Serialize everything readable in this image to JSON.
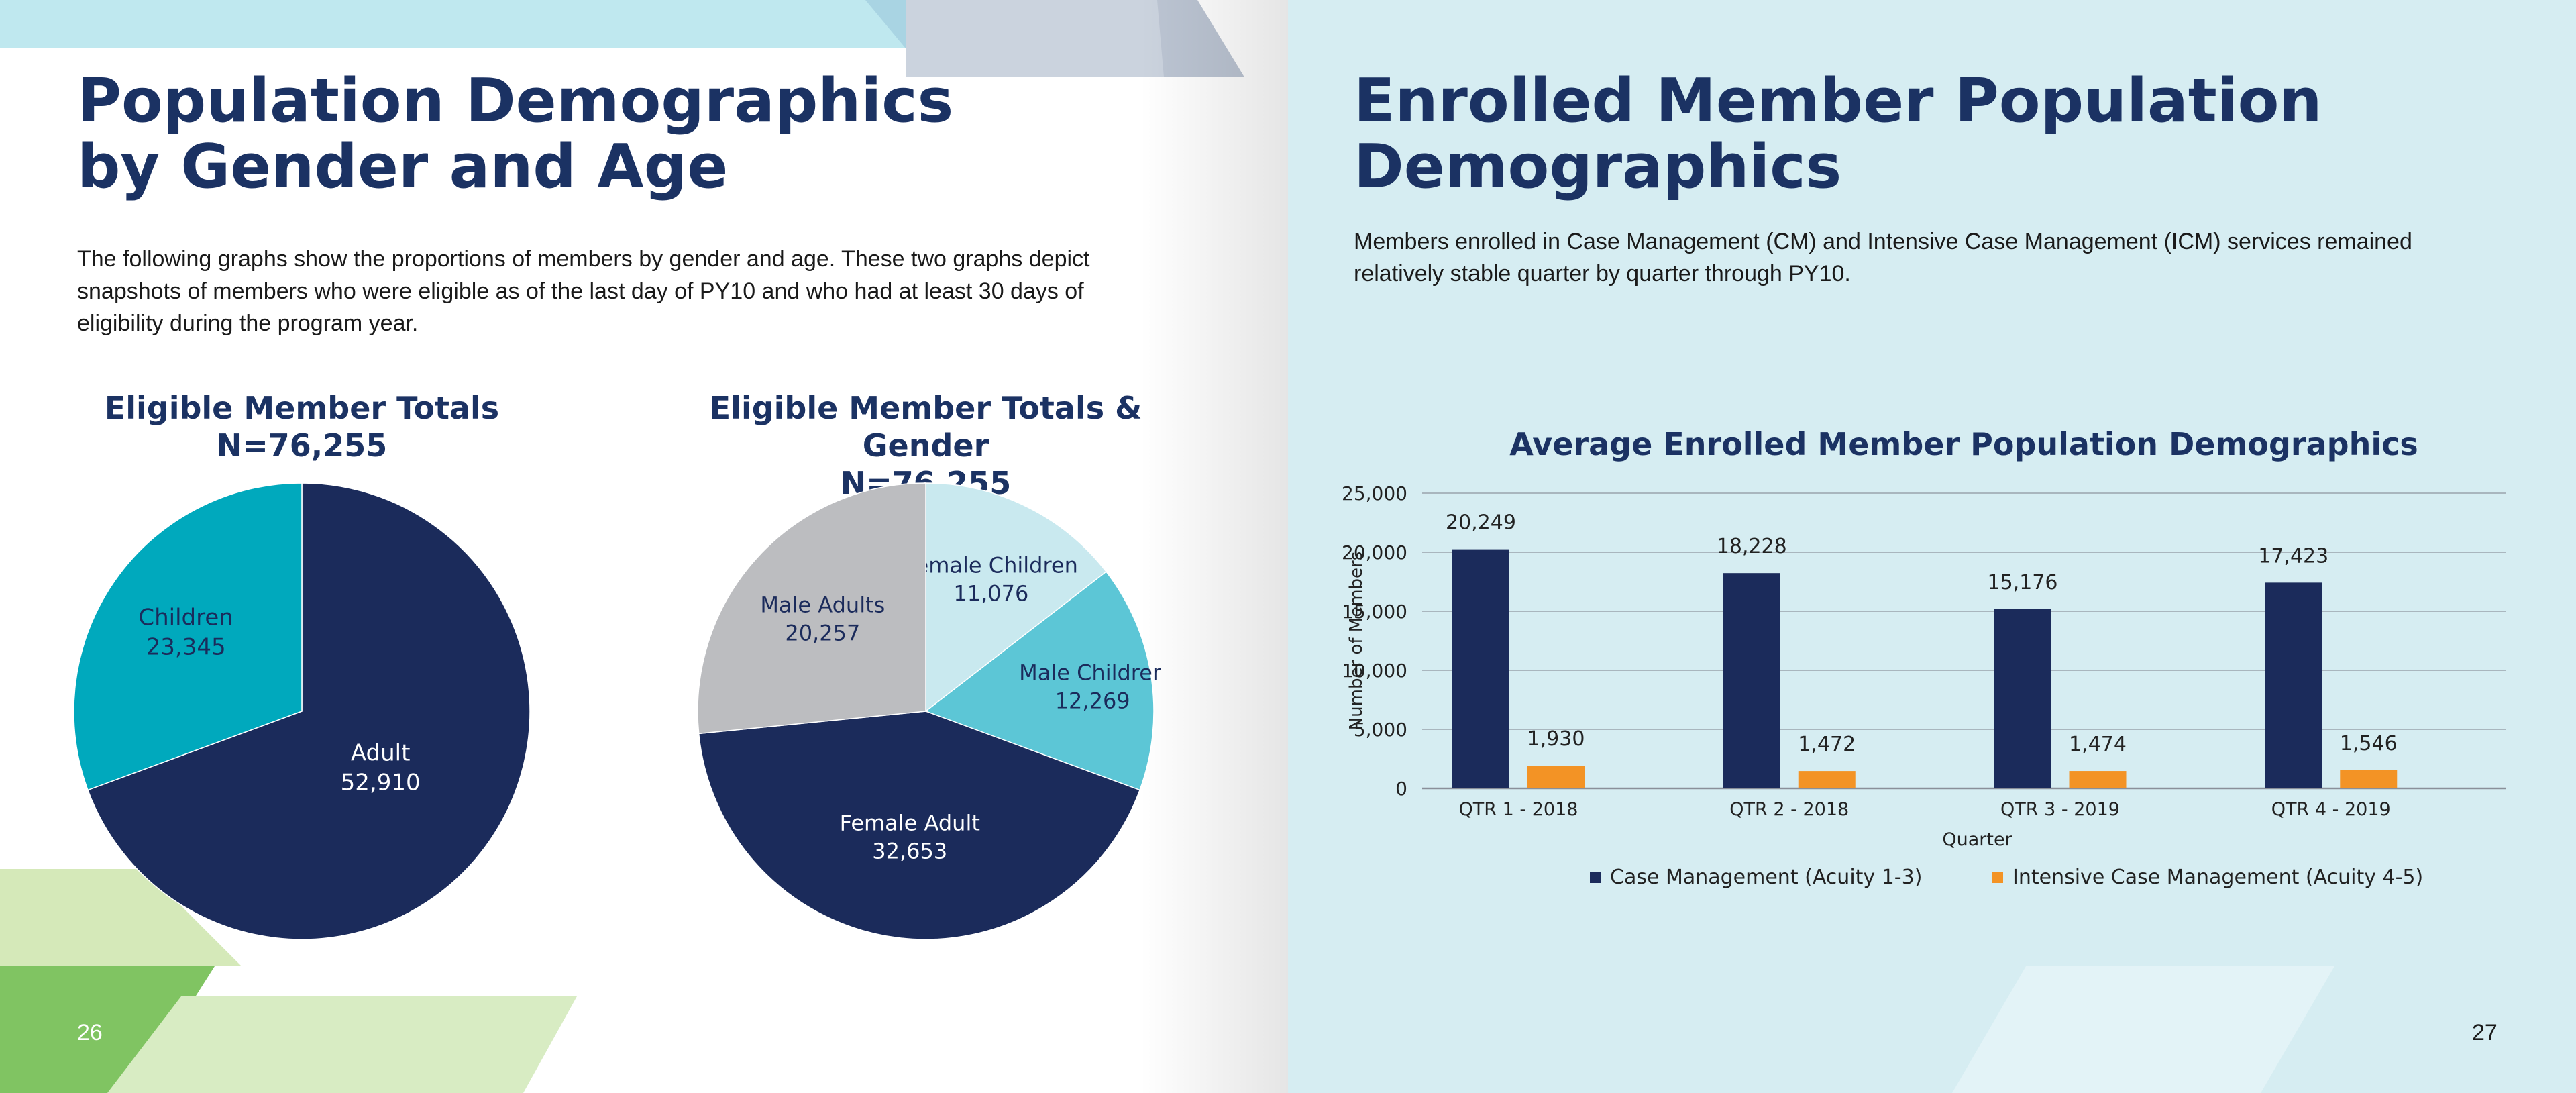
{
  "left_page": {
    "title_line1": "Population Demographics",
    "title_line2": "by Gender and Age",
    "body": "The following graphs show the proportions of members by gender and age. These two graphs depict snapshots of members who were eligible as of the last day of PY10 and who had at least 30 days of eligibility during the program year.",
    "page_number": "26"
  },
  "right_page": {
    "title_line1": "Enrolled Member Population",
    "title_line2": "Demographics",
    "body": "Members enrolled in Case Management (CM) and Intensive Case Management (ICM) services remained relatively stable quarter by quarter through PY10.",
    "page_number": "27"
  },
  "colors": {
    "navy": "#1b2b5b",
    "teal": "#00a9bd",
    "light_teal": "#5cc6d6",
    "pale_teal": "#c9e9ef",
    "gray": "#bcbdc0",
    "orange": "#f39325",
    "title": "#1b3263"
  },
  "chart_data": [
    {
      "type": "pie",
      "title": "Eligible Member Totals",
      "subtitle": "N=76,255",
      "slices": [
        {
          "label": "Adult",
          "value": 52910,
          "value_label": "52,910",
          "color": "#1b2b5b"
        },
        {
          "label": "Children",
          "value": 23345,
          "value_label": "23,345",
          "color": "#00a9bd"
        }
      ]
    },
    {
      "type": "pie",
      "title": "Eligible Member Totals & Gender",
      "subtitle": "N=76,255",
      "slices": [
        {
          "label": "Female Children",
          "value": 11076,
          "value_label": "11,076",
          "color": "#c9e9ef"
        },
        {
          "label": "Male Children",
          "value": 12269,
          "value_label": "12,269",
          "color": "#5cc6d6"
        },
        {
          "label": "Female Adult",
          "value": 32653,
          "value_label": "32,653",
          "color": "#1b2b5b"
        },
        {
          "label": "Male Adults",
          "value": 20257,
          "value_label": "20,257",
          "color": "#bcbdc0"
        }
      ]
    },
    {
      "type": "bar",
      "title": "Average Enrolled Member Population Demographics",
      "xlabel": "Quarter",
      "ylabel": "Number of Members",
      "ylim": [
        0,
        25000
      ],
      "yticks": [
        0,
        5000,
        10000,
        15000,
        20000,
        25000
      ],
      "ytick_labels": [
        "0",
        "5,000",
        "10,000",
        "15,000",
        "20,000",
        "25,000"
      ],
      "grid": true,
      "legend": "bottom",
      "categories": [
        "QTR 1 - 2018",
        "QTR 2 - 2018",
        "QTR 3 - 2019",
        "QTR 4 - 2019"
      ],
      "series": [
        {
          "name": "Case Management (Acuity 1-3)",
          "color": "#1b2b5b",
          "values": [
            20249,
            18228,
            15176,
            17423
          ],
          "value_labels": [
            "20,249",
            "18,228",
            "15,176",
            "17,423"
          ]
        },
        {
          "name": "Intensive Case Management (Acuity 4-5)",
          "color": "#f39325",
          "values": [
            1930,
            1472,
            1474,
            1546
          ],
          "value_labels": [
            "1,930",
            "1,472",
            "1,474",
            "1,546"
          ]
        }
      ]
    }
  ]
}
